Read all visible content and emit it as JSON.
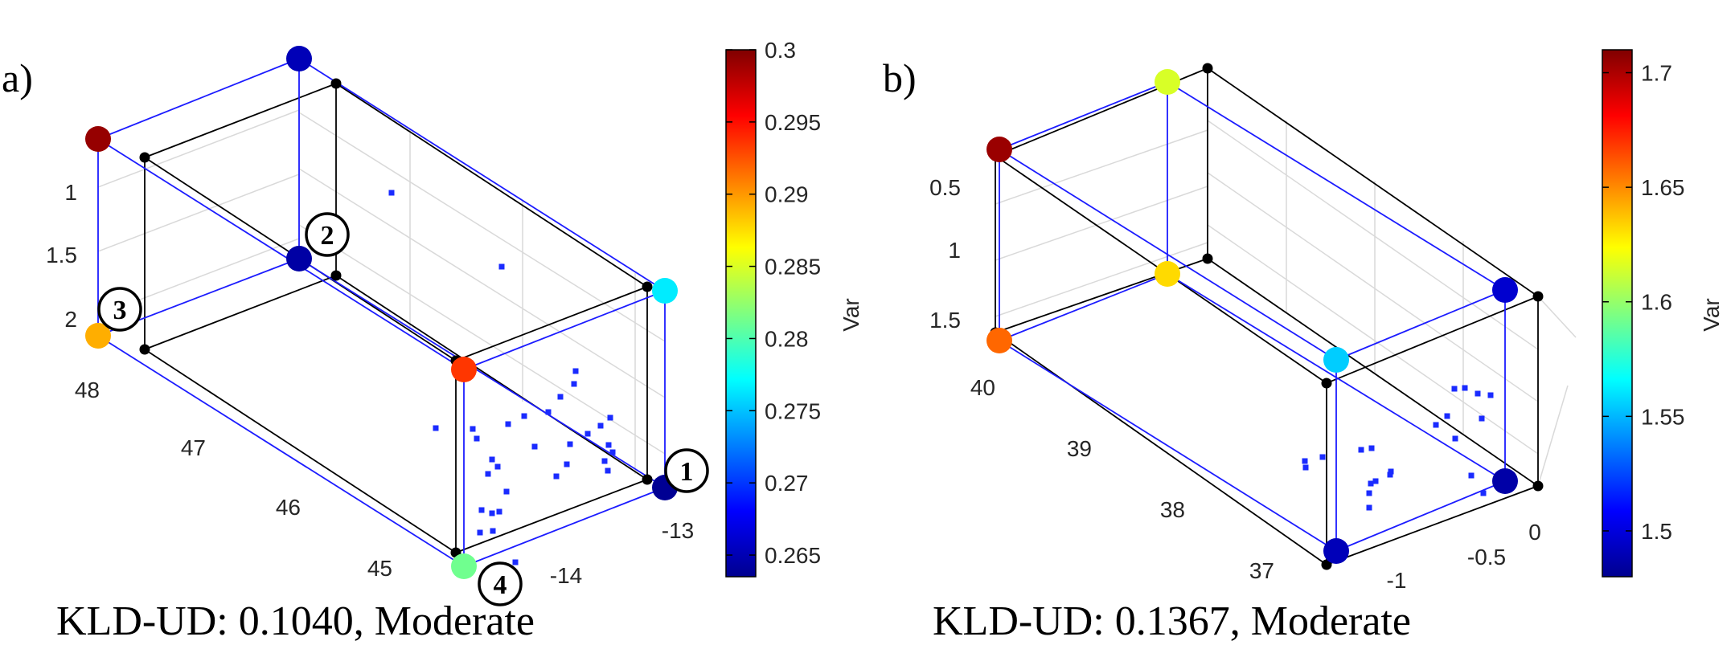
{
  "chart_data": [
    {
      "type": "scatter",
      "projection": "3d",
      "panel_label": "a)",
      "caption": "KLD-UD: 0.1040, Moderate",
      "colorbar": {
        "label": "Var",
        "min": 0.2635,
        "max": 0.3,
        "ticks": [
          "0.3",
          "0.295",
          "0.29",
          "0.285",
          "0.28",
          "0.275",
          "0.27",
          "0.265"
        ]
      },
      "axes": {
        "x": {
          "ticks": [
            "-14",
            "-13"
          ],
          "range": [
            -14.5,
            -12.8
          ]
        },
        "y": {
          "ticks": [
            "45",
            "46",
            "47",
            "48"
          ],
          "range": [
            44.7,
            48.3
          ]
        },
        "z": {
          "ticks": [
            "1",
            "1.5",
            "2"
          ],
          "range": [
            0.8,
            2.2
          ],
          "reversed": true
        }
      },
      "vertices": [
        {
          "name": "vertex-a-top-back-left",
          "var": 0.2992
        },
        {
          "name": "vertex-a-top-back-right",
          "var": 0.2655
        },
        {
          "name": "vertex-a-top-front-right",
          "var": 0.2765
        },
        {
          "name": "vertex-a-top-front-left",
          "var": 0.2935
        },
        {
          "name": "vertex-a-bottom-back-left",
          "var": 0.2892
        },
        {
          "name": "vertex-a-bottom-back-right",
          "var": 0.2648
        },
        {
          "name": "vertex-a-bottom-front-right",
          "var": 0.2642
        },
        {
          "name": "vertex-a-bottom-front-left",
          "var": 0.2812
        }
      ],
      "markers": [
        {
          "name": "marker-1",
          "label": "1"
        },
        {
          "name": "marker-2",
          "label": "2"
        },
        {
          "name": "marker-3",
          "label": "3"
        },
        {
          "name": "marker-4",
          "label": "4"
        }
      ],
      "point_count": 33
    },
    {
      "type": "scatter",
      "projection": "3d",
      "panel_label": "b)",
      "caption": "KLD-UD: 0.1367, Moderate",
      "colorbar": {
        "label": "Var",
        "min": 1.48,
        "max": 1.71,
        "ticks": [
          "1.7",
          "1.65",
          "1.6",
          "1.55",
          "1.5"
        ]
      },
      "axes": {
        "x": {
          "ticks": [
            "-1",
            "-0.5",
            "0"
          ],
          "range": [
            -1.2,
            0.2
          ]
        },
        "y": {
          "ticks": [
            "37",
            "38",
            "39",
            "40"
          ],
          "range": [
            36.7,
            40.3
          ]
        },
        "z": {
          "ticks": [
            "0.5",
            "1",
            "1.5"
          ],
          "range": [
            0.2,
            1.6
          ],
          "reversed": true
        }
      },
      "vertices": [
        {
          "name": "vertex-b-top-back-left",
          "var": 1.704
        },
        {
          "name": "vertex-b-top-back-right",
          "var": 1.615
        },
        {
          "name": "vertex-b-top-front-right",
          "var": 1.498
        },
        {
          "name": "vertex-b-top-front-left",
          "var": 1.555
        },
        {
          "name": "vertex-b-bottom-back-left",
          "var": 1.658
        },
        {
          "name": "vertex-b-bottom-back-right",
          "var": 1.632
        },
        {
          "name": "vertex-b-bottom-front-right",
          "var": 1.489
        },
        {
          "name": "vertex-b-bottom-front-left",
          "var": 1.493
        }
      ],
      "point_count": 21
    }
  ]
}
